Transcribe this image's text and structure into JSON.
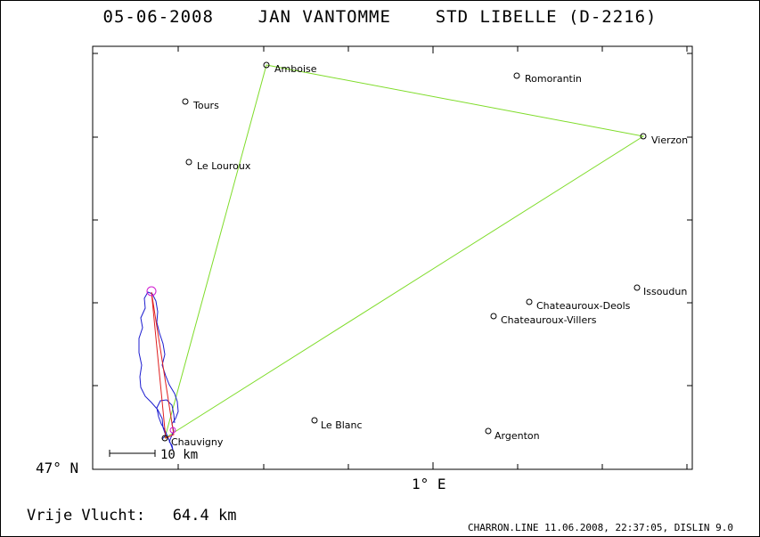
{
  "title": {
    "date": "05-06-2008",
    "pilot": "JAN VANTOMME",
    "glider": "STD LIBELLE (D-2216)"
  },
  "axes": {
    "y_label": "47° N",
    "x_label": "1° E"
  },
  "scale_bar": {
    "label": "10 km"
  },
  "places": [
    {
      "name": "Amboise",
      "icon": "waypoint-circle-icon"
    },
    {
      "name": "Romorantin",
      "icon": "waypoint-circle-icon"
    },
    {
      "name": "Tours",
      "icon": "waypoint-circle-icon"
    },
    {
      "name": "Vierzon",
      "icon": "waypoint-circle-icon"
    },
    {
      "name": "Le Louroux",
      "icon": "waypoint-circle-icon"
    },
    {
      "name": "Issoudun",
      "icon": "waypoint-circle-icon"
    },
    {
      "name": "Chateauroux-Deols",
      "icon": "waypoint-circle-icon"
    },
    {
      "name": "Chateauroux-Villers",
      "icon": "waypoint-circle-icon"
    },
    {
      "name": "Le Blanc",
      "icon": "waypoint-circle-icon"
    },
    {
      "name": "Argenton",
      "icon": "waypoint-circle-icon"
    },
    {
      "name": "Chauvigny",
      "icon": "waypoint-circle-icon"
    }
  ],
  "task_route": [
    "Chauvigny",
    "Amboise",
    "Vierzon",
    "Chauvigny"
  ],
  "colors": {
    "task_line": "#7fdc2a",
    "flight_track": "#1c1ccf",
    "free_flight_line": "#e02020",
    "start_marker": "#d01ad0"
  },
  "flight_distance": {
    "label": "Vrije Vlucht:",
    "value": "64.4 km"
  },
  "footer": "CHARRON.LINE 11.06.2008, 22:37:05, DISLIN 9.0"
}
